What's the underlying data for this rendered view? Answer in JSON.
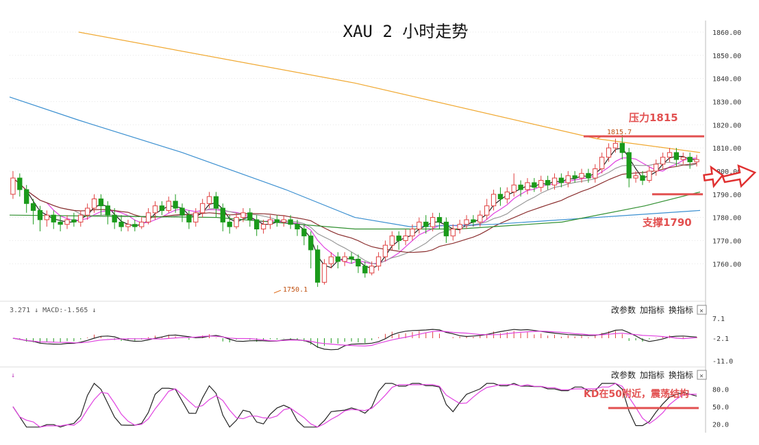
{
  "chart_data": [
    {
      "type": "candlestick",
      "title": "XAU 2 小时走势",
      "ylim": [
        1745,
        1865
      ],
      "yticks": [
        "1860.00",
        "1850.00",
        "1840.00",
        "1830.00",
        "1820.00",
        "1810.00",
        "1800.00",
        "1790.00",
        "1780.00",
        "1770.00",
        "1760.00"
      ],
      "high_label": "1815.7",
      "low_label": "1750.1",
      "resistance": {
        "value": 1815,
        "label": "压力1815"
      },
      "support": {
        "value": 1790,
        "label": "支撑1790"
      },
      "colors": {
        "up": "#e04040",
        "down": "#1a9a1a",
        "ma_orange": "#f0a830",
        "ma_blue": "#3a8fd0",
        "ma_green": "#2f8f2f",
        "ma_brown": "#8b2f2f",
        "ma_pink": "#e040e0",
        "ma_black": "#222222",
        "ma_gray": "#999999",
        "annotation": "#e25050"
      },
      "candles": [
        [
          1790,
          1797,
          1788,
          1800
        ],
        [
          1797,
          1792,
          1789,
          1799
        ],
        [
          1792,
          1786,
          1782,
          1794
        ],
        [
          1786,
          1783,
          1777,
          1788
        ],
        [
          1783,
          1779,
          1774,
          1785
        ],
        [
          1779,
          1781,
          1776,
          1783
        ],
        [
          1781,
          1778,
          1775,
          1783
        ],
        [
          1778,
          1777,
          1774,
          1781
        ],
        [
          1777,
          1779,
          1775,
          1781
        ],
        [
          1779,
          1778,
          1776,
          1782
        ],
        [
          1778,
          1781,
          1776,
          1783
        ],
        [
          1781,
          1784,
          1779,
          1786
        ],
        [
          1784,
          1788,
          1782,
          1790
        ],
        [
          1788,
          1785,
          1781,
          1790
        ],
        [
          1785,
          1781,
          1777,
          1787
        ],
        [
          1781,
          1778,
          1775,
          1784
        ],
        [
          1778,
          1776,
          1774,
          1781
        ],
        [
          1776,
          1777,
          1774,
          1779
        ],
        [
          1777,
          1776,
          1774,
          1779
        ],
        [
          1776,
          1778,
          1775,
          1780
        ],
        [
          1778,
          1782,
          1777,
          1784
        ],
        [
          1782,
          1785,
          1779,
          1787
        ],
        [
          1785,
          1783,
          1781,
          1787
        ],
        [
          1783,
          1787,
          1782,
          1789
        ],
        [
          1787,
          1784,
          1782,
          1790
        ],
        [
          1784,
          1781,
          1778,
          1786
        ],
        [
          1781,
          1778,
          1775,
          1783
        ],
        [
          1778,
          1782,
          1776,
          1784
        ],
        [
          1782,
          1786,
          1780,
          1788
        ],
        [
          1786,
          1789,
          1784,
          1791
        ],
        [
          1789,
          1784,
          1780,
          1791
        ],
        [
          1784,
          1778,
          1774,
          1786
        ],
        [
          1778,
          1776,
          1773,
          1781
        ],
        [
          1776,
          1780,
          1775,
          1782
        ],
        [
          1780,
          1782,
          1778,
          1784
        ],
        [
          1782,
          1779,
          1776,
          1784
        ],
        [
          1779,
          1775,
          1772,
          1781
        ],
        [
          1775,
          1777,
          1773,
          1779
        ],
        [
          1777,
          1779,
          1775,
          1781
        ],
        [
          1779,
          1778,
          1776,
          1781
        ],
        [
          1778,
          1779,
          1776,
          1781
        ],
        [
          1779,
          1777,
          1775,
          1781
        ],
        [
          1777,
          1775,
          1772,
          1779
        ],
        [
          1775,
          1772,
          1768,
          1777
        ],
        [
          1772,
          1766,
          1758,
          1774
        ],
        [
          1766,
          1752,
          1750,
          1768
        ],
        [
          1752,
          1760,
          1751,
          1762
        ],
        [
          1760,
          1763,
          1758,
          1765
        ],
        [
          1763,
          1761,
          1758,
          1765
        ],
        [
          1761,
          1763,
          1759,
          1765
        ],
        [
          1763,
          1762,
          1760,
          1765
        ],
        [
          1762,
          1759,
          1756,
          1764
        ],
        [
          1759,
          1756,
          1754,
          1761
        ],
        [
          1756,
          1759,
          1755,
          1761
        ],
        [
          1759,
          1763,
          1757,
          1765
        ],
        [
          1763,
          1768,
          1761,
          1770
        ],
        [
          1768,
          1772,
          1766,
          1774
        ],
        [
          1772,
          1770,
          1766,
          1774
        ],
        [
          1770,
          1772,
          1768,
          1775
        ],
        [
          1772,
          1775,
          1770,
          1777
        ],
        [
          1775,
          1778,
          1773,
          1780
        ],
        [
          1778,
          1776,
          1773,
          1781
        ],
        [
          1776,
          1780,
          1774,
          1782
        ],
        [
          1780,
          1778,
          1775,
          1782
        ],
        [
          1778,
          1772,
          1769,
          1780
        ],
        [
          1772,
          1775,
          1770,
          1777
        ],
        [
          1775,
          1777,
          1773,
          1779
        ],
        [
          1777,
          1779,
          1775,
          1781
        ],
        [
          1779,
          1778,
          1776,
          1781
        ],
        [
          1778,
          1781,
          1776,
          1783
        ],
        [
          1781,
          1785,
          1779,
          1788
        ],
        [
          1785,
          1790,
          1783,
          1792
        ],
        [
          1790,
          1788,
          1785,
          1793
        ],
        [
          1788,
          1791,
          1786,
          1793
        ],
        [
          1791,
          1794,
          1789,
          1799
        ],
        [
          1794,
          1792,
          1789,
          1796
        ],
        [
          1792,
          1795,
          1790,
          1797
        ],
        [
          1795,
          1793,
          1791,
          1797
        ],
        [
          1793,
          1796,
          1791,
          1798
        ],
        [
          1796,
          1794,
          1792,
          1798
        ],
        [
          1794,
          1797,
          1792,
          1799
        ],
        [
          1797,
          1795,
          1793,
          1799
        ],
        [
          1795,
          1798,
          1793,
          1800
        ],
        [
          1798,
          1797,
          1795,
          1800
        ],
        [
          1797,
          1799,
          1795,
          1801
        ],
        [
          1799,
          1797,
          1795,
          1801
        ],
        [
          1797,
          1801,
          1795,
          1803
        ],
        [
          1801,
          1806,
          1799,
          1808
        ],
        [
          1806,
          1810,
          1804,
          1812
        ],
        [
          1810,
          1812,
          1808,
          1814
        ],
        [
          1812,
          1808,
          1805,
          1815.7
        ],
        [
          1808,
          1797,
          1793,
          1810
        ],
        [
          1797,
          1798,
          1795,
          1800
        ],
        [
          1798,
          1796,
          1794,
          1800
        ],
        [
          1796,
          1800,
          1795,
          1802
        ],
        [
          1800,
          1803,
          1798,
          1805
        ],
        [
          1803,
          1806,
          1801,
          1808
        ],
        [
          1806,
          1808,
          1804,
          1810
        ],
        [
          1808,
          1805,
          1802,
          1810
        ],
        [
          1805,
          1806,
          1803,
          1808
        ],
        [
          1806,
          1804,
          1801,
          1808
        ],
        [
          1804,
          1805,
          1802,
          1807
        ]
      ],
      "ma_orange": [
        [
          0.1,
          1860
        ],
        [
          0.5,
          1838
        ],
        [
          0.85,
          1814
        ],
        [
          1.0,
          1808
        ]
      ],
      "ma_blue": [
        [
          0.0,
          1832
        ],
        [
          0.1,
          1822
        ],
        [
          0.25,
          1808
        ],
        [
          0.4,
          1792
        ],
        [
          0.5,
          1780
        ],
        [
          0.58,
          1776
        ],
        [
          0.7,
          1777
        ],
        [
          0.85,
          1780
        ],
        [
          1.0,
          1783
        ]
      ],
      "ma_green": [
        [
          0.0,
          1781
        ],
        [
          0.3,
          1780
        ],
        [
          0.5,
          1775
        ],
        [
          0.65,
          1775
        ],
        [
          0.8,
          1778
        ],
        [
          0.92,
          1785
        ],
        [
          1.0,
          1791
        ]
      ]
    },
    {
      "type": "macd",
      "header": "3.271 ↓ MACD:-1.565 ↓",
      "yticks": [
        "7.1",
        "-2.1",
        "-11.0"
      ],
      "buttons": {
        "params": "改参数",
        "add": "加指标",
        "switch": "换指标",
        "close": "×"
      }
    },
    {
      "type": "kd",
      "header": "↓",
      "yticks": [
        "80.0",
        "50.0",
        "20.0"
      ],
      "annotation": "KD在50附近，震荡结构",
      "buttons": {
        "params": "改参数",
        "add": "加指标",
        "switch": "换指标",
        "close": "×"
      }
    }
  ]
}
